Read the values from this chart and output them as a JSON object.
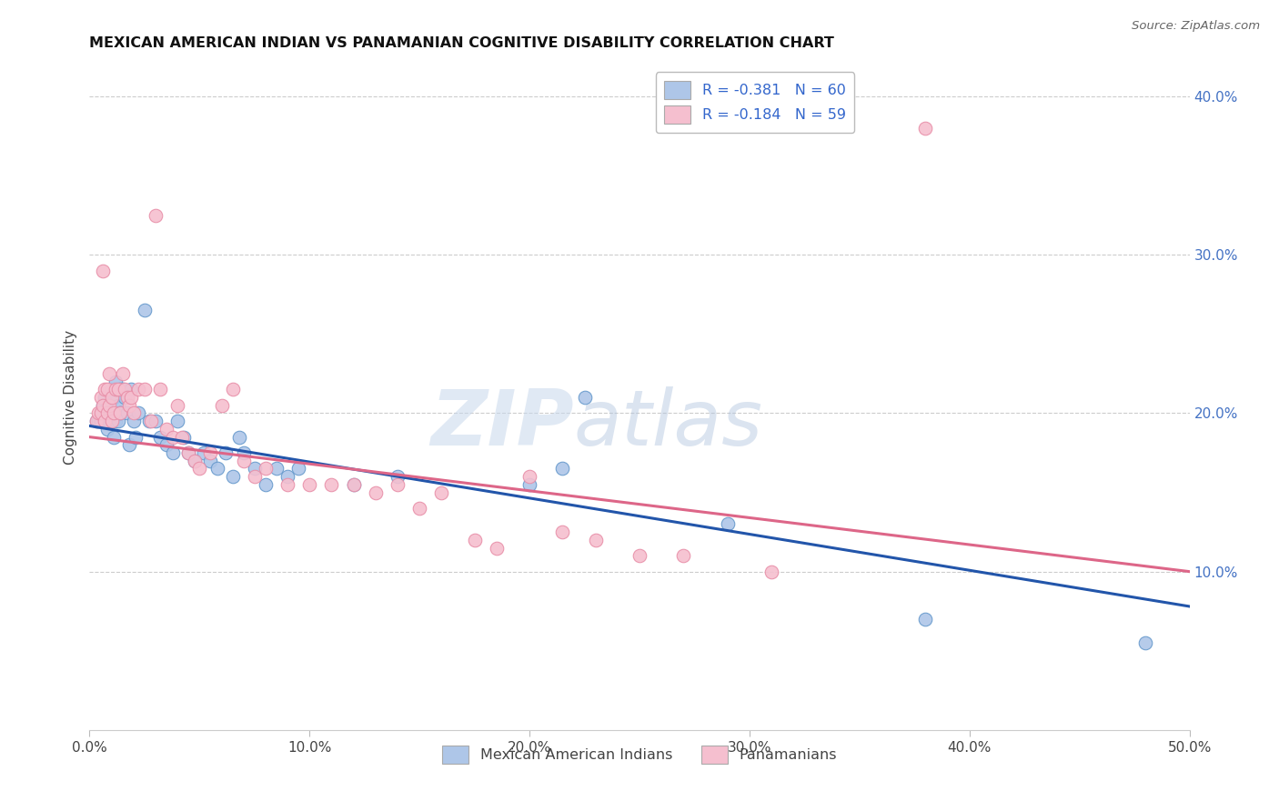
{
  "title": "MEXICAN AMERICAN INDIAN VS PANAMANIAN COGNITIVE DISABILITY CORRELATION CHART",
  "source": "Source: ZipAtlas.com",
  "ylabel": "Cognitive Disability",
  "xlim": [
    0.0,
    0.5
  ],
  "ylim": [
    0.0,
    0.42
  ],
  "xticks": [
    0.0,
    0.1,
    0.2,
    0.3,
    0.4,
    0.5
  ],
  "yticks_right": [
    0.1,
    0.2,
    0.3,
    0.4
  ],
  "watermark_zip": "ZIP",
  "watermark_atlas": "atlas",
  "blue_R": -0.381,
  "blue_N": 60,
  "pink_R": -0.184,
  "pink_N": 59,
  "blue_color": "#aec6e8",
  "pink_color": "#f5bfcf",
  "blue_edge_color": "#6699cc",
  "pink_edge_color": "#e88fa8",
  "blue_line_color": "#2255aa",
  "pink_line_color": "#dd6688",
  "legend_text_color": "#3366cc",
  "legend_N_color": "#3366cc",
  "blue_line_start_y": 0.192,
  "blue_line_end_y": 0.078,
  "pink_line_start_y": 0.185,
  "pink_line_end_y": 0.1,
  "blue_scatter_x": [
    0.003,
    0.004,
    0.005,
    0.005,
    0.006,
    0.006,
    0.007,
    0.007,
    0.008,
    0.008,
    0.009,
    0.009,
    0.01,
    0.01,
    0.011,
    0.011,
    0.012,
    0.012,
    0.013,
    0.013,
    0.014,
    0.014,
    0.015,
    0.016,
    0.017,
    0.018,
    0.019,
    0.02,
    0.021,
    0.022,
    0.025,
    0.027,
    0.03,
    0.032,
    0.035,
    0.038,
    0.04,
    0.043,
    0.045,
    0.048,
    0.052,
    0.055,
    0.058,
    0.062,
    0.065,
    0.068,
    0.07,
    0.075,
    0.08,
    0.085,
    0.09,
    0.095,
    0.12,
    0.14,
    0.2,
    0.215,
    0.225,
    0.29,
    0.38,
    0.48
  ],
  "blue_scatter_y": [
    0.195,
    0.195,
    0.2,
    0.195,
    0.205,
    0.2,
    0.195,
    0.21,
    0.19,
    0.205,
    0.195,
    0.2,
    0.215,
    0.195,
    0.21,
    0.185,
    0.195,
    0.22,
    0.195,
    0.205,
    0.215,
    0.2,
    0.215,
    0.21,
    0.2,
    0.18,
    0.215,
    0.195,
    0.185,
    0.2,
    0.265,
    0.195,
    0.195,
    0.185,
    0.18,
    0.175,
    0.195,
    0.185,
    0.175,
    0.17,
    0.175,
    0.17,
    0.165,
    0.175,
    0.16,
    0.185,
    0.175,
    0.165,
    0.155,
    0.165,
    0.16,
    0.165,
    0.155,
    0.16,
    0.155,
    0.165,
    0.21,
    0.13,
    0.07,
    0.055
  ],
  "pink_scatter_x": [
    0.003,
    0.004,
    0.005,
    0.005,
    0.006,
    0.006,
    0.007,
    0.007,
    0.008,
    0.008,
    0.009,
    0.009,
    0.01,
    0.01,
    0.011,
    0.012,
    0.013,
    0.014,
    0.015,
    0.016,
    0.017,
    0.018,
    0.019,
    0.02,
    0.022,
    0.025,
    0.028,
    0.03,
    0.032,
    0.035,
    0.038,
    0.04,
    0.042,
    0.045,
    0.048,
    0.05,
    0.055,
    0.06,
    0.065,
    0.07,
    0.075,
    0.08,
    0.09,
    0.1,
    0.11,
    0.12,
    0.13,
    0.14,
    0.15,
    0.16,
    0.175,
    0.185,
    0.2,
    0.215,
    0.23,
    0.25,
    0.27,
    0.31,
    0.38
  ],
  "pink_scatter_y": [
    0.195,
    0.2,
    0.2,
    0.21,
    0.205,
    0.29,
    0.195,
    0.215,
    0.2,
    0.215,
    0.225,
    0.205,
    0.195,
    0.21,
    0.2,
    0.215,
    0.215,
    0.2,
    0.225,
    0.215,
    0.21,
    0.205,
    0.21,
    0.2,
    0.215,
    0.215,
    0.195,
    0.325,
    0.215,
    0.19,
    0.185,
    0.205,
    0.185,
    0.175,
    0.17,
    0.165,
    0.175,
    0.205,
    0.215,
    0.17,
    0.16,
    0.165,
    0.155,
    0.155,
    0.155,
    0.155,
    0.15,
    0.155,
    0.14,
    0.15,
    0.12,
    0.115,
    0.16,
    0.125,
    0.12,
    0.11,
    0.11,
    0.1,
    0.38
  ],
  "legend1_label1": "R = -0.381   N = 60",
  "legend1_label2": "R = -0.184   N = 59",
  "legend2_label1": "Mexican American Indians",
  "legend2_label2": "Panamanians"
}
